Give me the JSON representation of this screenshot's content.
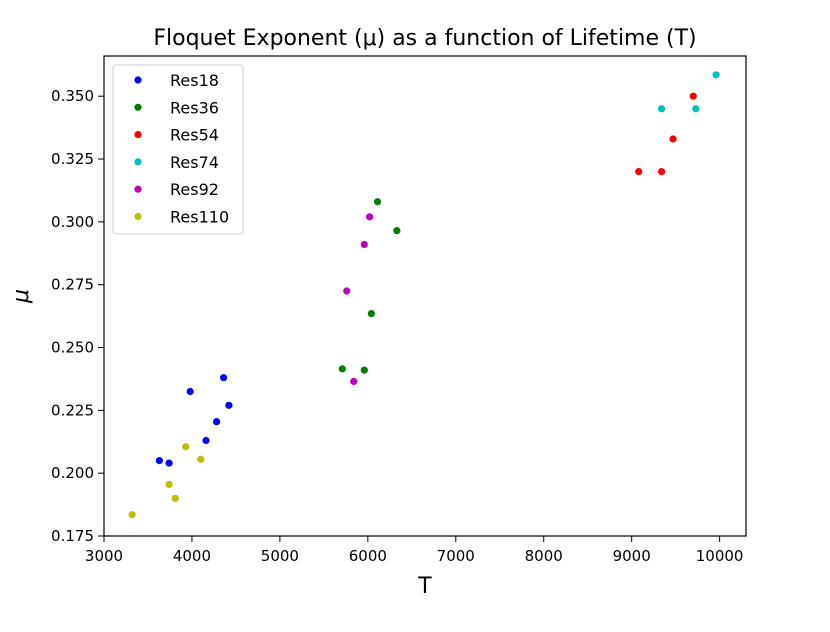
{
  "chart_data": {
    "type": "scatter",
    "title": "Floquet Exponent (μ) as a function of Lifetime (T)",
    "xlabel": "T",
    "ylabel": "μ",
    "xlim": [
      3000,
      10300
    ],
    "ylim": [
      0.175,
      0.366
    ],
    "xticks": [
      3000,
      4000,
      5000,
      6000,
      7000,
      8000,
      9000,
      10000
    ],
    "yticks": [
      0.175,
      0.2,
      0.225,
      0.25,
      0.275,
      0.3,
      0.325,
      0.35
    ],
    "ytick_labels": [
      "0.175",
      "0.200",
      "0.225",
      "0.250",
      "0.275",
      "0.300",
      "0.325",
      "0.350"
    ],
    "grid": false,
    "legend_position": "top-left",
    "series": [
      {
        "name": "Res18",
        "color": "#0000ff",
        "points": [
          [
            3630,
            0.205
          ],
          [
            3740,
            0.204
          ],
          [
            3980,
            0.2325
          ],
          [
            4160,
            0.213
          ],
          [
            4280,
            0.2205
          ],
          [
            4360,
            0.238
          ],
          [
            4420,
            0.227
          ]
        ]
      },
      {
        "name": "Res36",
        "color": "#008000",
        "points": [
          [
            5710,
            0.2415
          ],
          [
            5960,
            0.241
          ],
          [
            6040,
            0.2635
          ],
          [
            6110,
            0.308
          ],
          [
            6330,
            0.2965
          ]
        ]
      },
      {
        "name": "Res54",
        "color": "#ff0000",
        "points": [
          [
            9080,
            0.32
          ],
          [
            9340,
            0.32
          ],
          [
            9470,
            0.333
          ],
          [
            9700,
            0.35
          ]
        ]
      },
      {
        "name": "Res74",
        "color": "#00bfbf",
        "points": [
          [
            9340,
            0.345
          ],
          [
            9730,
            0.345
          ],
          [
            9960,
            0.3585
          ]
        ]
      },
      {
        "name": "Res92",
        "color": "#bf00bf",
        "points": [
          [
            5760,
            0.2725
          ],
          [
            5840,
            0.2365
          ],
          [
            5960,
            0.291
          ],
          [
            6020,
            0.302
          ]
        ]
      },
      {
        "name": "Res110",
        "color": "#bfbf00",
        "points": [
          [
            3320,
            0.1835
          ],
          [
            3740,
            0.1955
          ],
          [
            3810,
            0.19
          ],
          [
            3930,
            0.2105
          ],
          [
            4100,
            0.2055
          ]
        ]
      }
    ]
  }
}
